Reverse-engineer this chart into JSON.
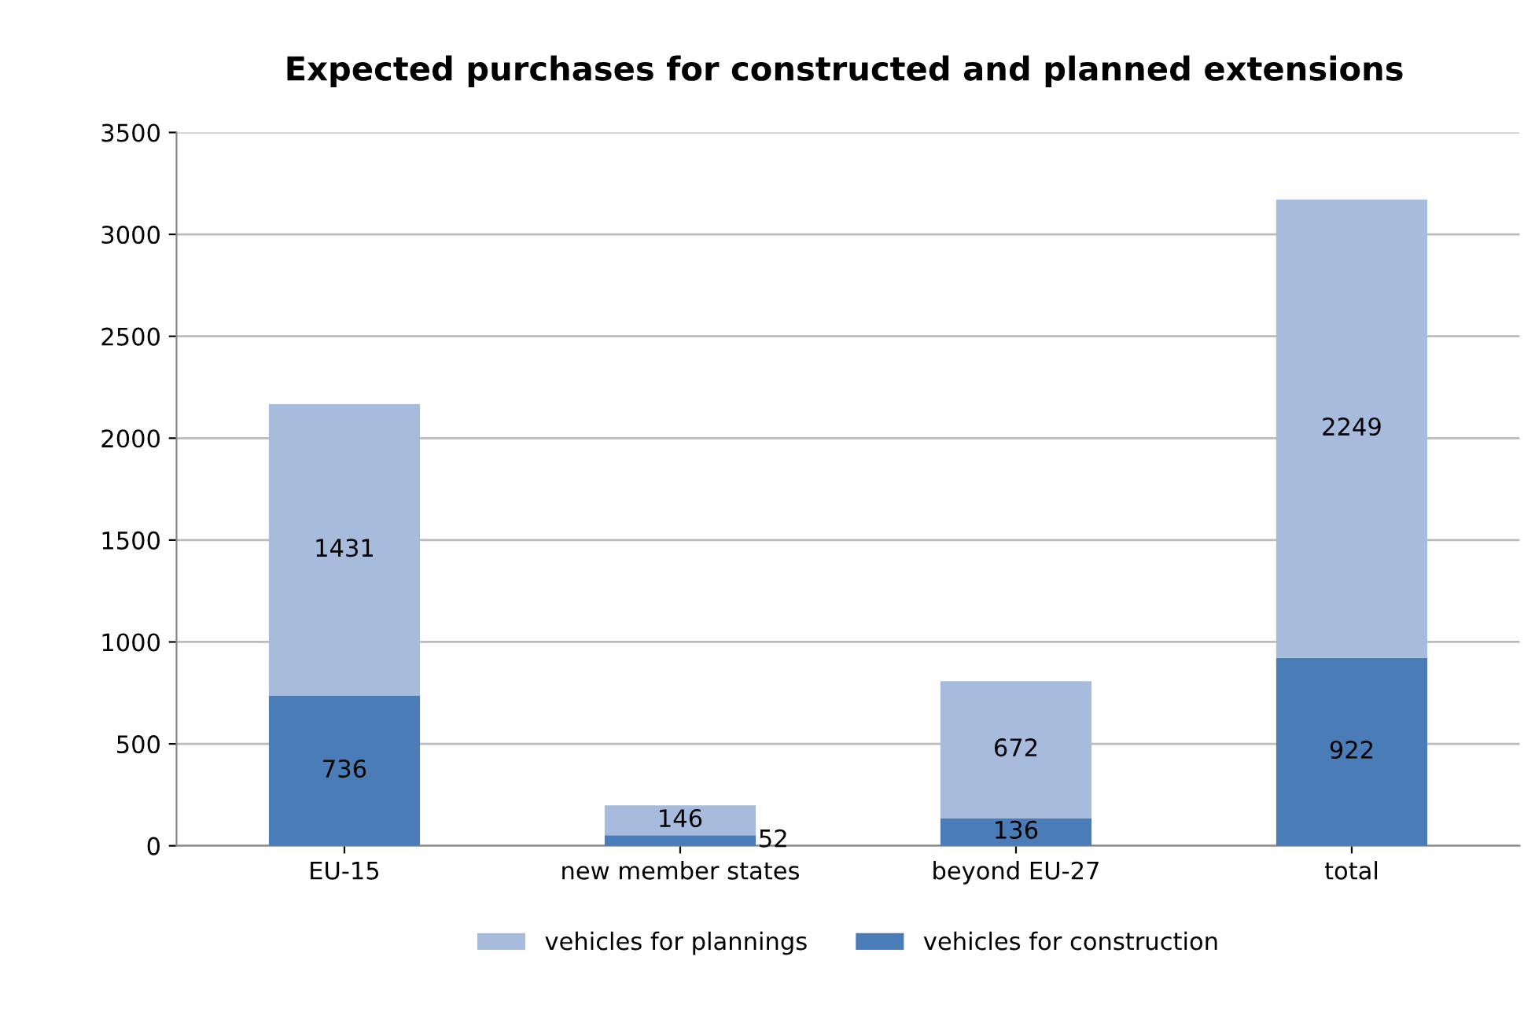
{
  "chart_data": {
    "type": "bar",
    "title": "Expected purchases for constructed and planned extensions",
    "categories": [
      "EU-15",
      "new member states",
      "beyond EU-27",
      "total"
    ],
    "stacked": true,
    "series": [
      {
        "name": "vehicles for construction",
        "color": "#4a7db8",
        "values": [
          736,
          52,
          136,
          922
        ]
      },
      {
        "name": "vehicles for plannings",
        "color": "#a7bcdd",
        "values": [
          1431,
          146,
          672,
          2249
        ]
      }
    ],
    "ylim": [
      0,
      3500
    ],
    "yticks": [
      0,
      500,
      1000,
      1500,
      2000,
      2500,
      3000,
      3500
    ],
    "grid": "y",
    "legend": "bottom",
    "data_labels": true
  }
}
